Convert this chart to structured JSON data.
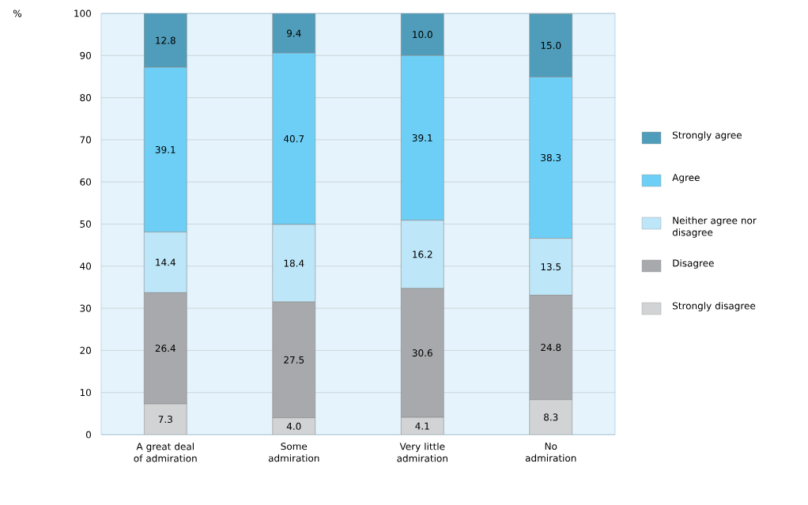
{
  "chart_data": {
    "type": "bar",
    "stacked": true,
    "annotations": [
      "%"
    ],
    "categories": [
      "A great deal of admiration",
      "Some admiration",
      "Very little admiration",
      "No admiration"
    ],
    "series": [
      {
        "name": "Strongly disagree",
        "color": "#d1d3d4",
        "values": [
          7.3,
          4.0,
          4.1,
          8.3
        ],
        "value_labels": [
          "7.3",
          "4.0",
          "4.1",
          "8.3"
        ]
      },
      {
        "name": "Disagree",
        "color": "#a7a9ac",
        "values": [
          26.4,
          27.5,
          30.6,
          24.8
        ],
        "value_labels": [
          "26.4",
          "27.5",
          "30.6",
          "24.8"
        ]
      },
      {
        "name": "Neither agree nor disagree",
        "color": "#bde6f8",
        "values": [
          14.4,
          18.4,
          16.2,
          13.5
        ],
        "value_labels": [
          "14.4",
          "18.4",
          "16.2",
          "13.5"
        ]
      },
      {
        "name": "Agree",
        "color": "#6dcff6",
        "values": [
          39.1,
          40.7,
          39.1,
          38.3
        ],
        "value_labels": [
          "39.1",
          "40.7",
          "39.1",
          "38.3"
        ]
      },
      {
        "name": "Strongly agree",
        "color": "#4f9dba",
        "values": [
          12.8,
          9.4,
          10.0,
          15.0
        ],
        "value_labels": [
          "12.8",
          "9.4",
          "10.0",
          "15.0"
        ]
      }
    ],
    "ylim": [
      0,
      100
    ],
    "yticks": [
      0,
      10,
      20,
      30,
      40,
      50,
      60,
      70,
      80,
      90,
      100
    ],
    "grid": "y",
    "legend": "right"
  }
}
